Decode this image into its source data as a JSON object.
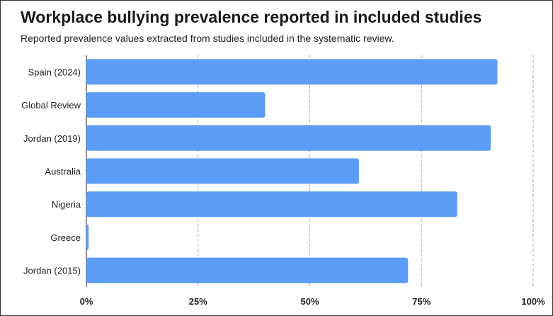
{
  "chart_data": {
    "type": "bar",
    "orientation": "horizontal",
    "title": "Workplace bullying prevalence reported in included studies",
    "subtitle": "Reported prevalence values extracted from studies included in the systematic review.",
    "categories": [
      "Spain (2024)",
      "Global Review",
      "Jordan (2019)",
      "Australia",
      "Nigeria",
      "Greece",
      "Jordan (2015)"
    ],
    "values": [
      92,
      40,
      90.5,
      61,
      83,
      0.5,
      72
    ],
    "xlim": [
      0,
      100
    ],
    "xticks": [
      "0%",
      "25%",
      "50%",
      "75%",
      "100%"
    ],
    "xtick_values": [
      0,
      25,
      50,
      75,
      100
    ],
    "grid": "vertical-dashed",
    "bar_color": "#5b9cf6",
    "grid_color": "#aaaaaa"
  }
}
